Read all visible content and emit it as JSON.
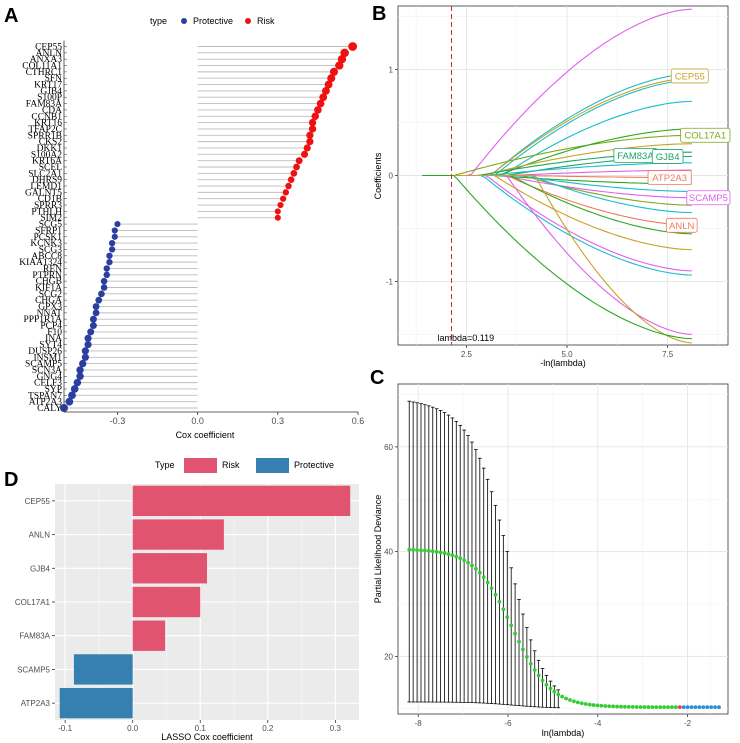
{
  "panels": {
    "a": "A",
    "b": "B",
    "c": "C",
    "d": "D"
  },
  "chart_data": [
    {
      "id": "A",
      "type": "lollipop",
      "xlabel": "Cox coefficient",
      "xticks": [
        "-0.3",
        "0.0",
        "0.3",
        "0.6"
      ],
      "xlim": [
        -0.5,
        0.6
      ],
      "legend": {
        "title": "type",
        "items": [
          {
            "name": "Protective",
            "color": "#2b3fa0"
          },
          {
            "name": "Risk",
            "color": "#ee1111"
          }
        ]
      },
      "genes": [
        "CEP55",
        "ANLN",
        "ANXA3",
        "COL11A1",
        "CTHRC1",
        "SFN",
        "KRT17",
        "GJB4",
        "S100P",
        "FAM83A",
        "CDA",
        "CCNB1",
        "KRT16",
        "TFAP2C",
        "SPRR1B",
        "CKS2",
        "DKK1",
        "S100A2",
        "KRT6A",
        "SCEL",
        "SLC2A1",
        "DHRS9",
        "LEMD1",
        "GALNT5",
        "CD1B",
        "SPRR3",
        "PTHLH",
        "SIM2",
        "SCG5",
        "SFRP1",
        "PCSK1",
        "KCNK3",
        "SCG3",
        "ABCC8",
        "KIAA1324",
        "REN",
        "PTPRN",
        "CHGB",
        "KIF1A",
        "SCG2",
        "CHGA",
        "GPX3",
        "NNAT",
        "PPP1R1A",
        "PCP4",
        "F10",
        "INA",
        "SYT4",
        "DUSP26",
        "INSM1",
        "SCAMP5",
        "SCN3A",
        "GNG4",
        "CELF3",
        "SYP",
        "TSPAN7",
        "ATP2A3",
        "CALY"
      ],
      "values": [
        0.58,
        0.55,
        0.54,
        0.53,
        0.51,
        0.5,
        0.49,
        0.48,
        0.47,
        0.46,
        0.45,
        0.44,
        0.43,
        0.43,
        0.42,
        0.42,
        0.41,
        0.4,
        0.38,
        0.37,
        0.36,
        0.35,
        0.34,
        0.33,
        0.32,
        0.31,
        0.3,
        0.3,
        -0.3,
        -0.31,
        -0.31,
        -0.32,
        -0.32,
        -0.33,
        -0.33,
        -0.34,
        -0.34,
        -0.35,
        -0.35,
        -0.36,
        -0.37,
        -0.38,
        -0.38,
        -0.39,
        -0.39,
        -0.4,
        -0.41,
        -0.41,
        -0.42,
        -0.42,
        -0.43,
        -0.44,
        -0.44,
        -0.45,
        -0.46,
        -0.47,
        -0.48,
        -0.5
      ]
    },
    {
      "id": "B",
      "type": "line",
      "xlabel": "-ln(lambda)",
      "ylabel": "Coefficients",
      "xlim": [
        0.8,
        9.0
      ],
      "ylim": [
        -1.6,
        1.6
      ],
      "xticks": [
        {
          "v": 2.5,
          "t": "2.5"
        },
        {
          "v": 5.0,
          "t": "5.0"
        },
        {
          "v": 7.5,
          "t": "7.5"
        }
      ],
      "yticks": [
        {
          "v": -1,
          "t": "-1"
        },
        {
          "v": 0,
          "t": "0"
        },
        {
          "v": 1,
          "t": "1"
        }
      ],
      "vline": 2.13,
      "annotation": "lambda=0.119",
      "labels": [
        {
          "text": "CEP55",
          "x": 8.05,
          "y": 0.94,
          "color": "#c9a227"
        },
        {
          "text": "COL17A1",
          "x": 8.45,
          "y": 0.38,
          "color": "#7fa81a"
        },
        {
          "text": "FAM83A",
          "x": 6.7,
          "y": 0.19,
          "color": "#1aa66a"
        },
        {
          "text": "GJB4",
          "x": 7.5,
          "y": 0.18,
          "color": "#1aa66a"
        },
        {
          "text": "ATP2A3",
          "x": 7.55,
          "y": -0.02,
          "color": "#f07a60"
        },
        {
          "text": "SCAMP5",
          "x": 8.55,
          "y": -0.21,
          "color": "#e15ef0"
        },
        {
          "text": "ANLN",
          "x": 7.85,
          "y": -0.47,
          "color": "#f07a60"
        }
      ],
      "series": [
        {
          "c": "#e15ef0",
          "start": 2.6,
          "end": 1.57
        },
        {
          "c": "#19bdc9",
          "start": 3.1,
          "end": 0.96
        },
        {
          "c": "#c9a227",
          "start": 3.1,
          "end": 0.92
        },
        {
          "c": "#19bdc9",
          "start": 3.2,
          "end": 0.9
        },
        {
          "c": "#19bdc9",
          "start": 3.4,
          "end": 0.7
        },
        {
          "c": "#7fa81a",
          "start": 2.2,
          "end": 0.38
        },
        {
          "c": "#2aa820",
          "start": 3.3,
          "end": 0.44
        },
        {
          "c": "#c9a227",
          "start": 2.9,
          "end": 0.3
        },
        {
          "c": "#1aa66a",
          "start": 2.8,
          "end": 0.22
        },
        {
          "c": "#1aa66a",
          "start": 3.5,
          "end": 0.18
        },
        {
          "c": "#19bdc9",
          "start": 3.0,
          "end": 0.12
        },
        {
          "c": "#e15ef0",
          "start": 3.6,
          "end": 0.05
        },
        {
          "c": "#f07a60",
          "start": 4.0,
          "end": -0.02
        },
        {
          "c": "#2aa820",
          "start": 3.2,
          "end": -0.08
        },
        {
          "c": "#19bdc9",
          "start": 3.8,
          "end": -0.15
        },
        {
          "c": "#e15ef0",
          "start": 3.4,
          "end": -0.21
        },
        {
          "c": "#7fa81a",
          "start": 3.9,
          "end": -0.28
        },
        {
          "c": "#19bdc9",
          "start": 4.1,
          "end": -0.35
        },
        {
          "c": "#f07a60",
          "start": 3.5,
          "end": -0.47
        },
        {
          "c": "#2aa820",
          "start": 3.6,
          "end": -0.55
        },
        {
          "c": "#c9a227",
          "start": 3.2,
          "end": -0.7
        },
        {
          "c": "#e15ef0",
          "start": 3.0,
          "end": -0.9
        },
        {
          "c": "#19bdc9",
          "start": 2.9,
          "end": -0.94
        },
        {
          "c": "#e15ef0",
          "start": 3.5,
          "end": -1.5
        },
        {
          "c": "#c9a227",
          "start": 4.2,
          "end": -1.58
        },
        {
          "c": "#2aa820",
          "start": 2.2,
          "end": -1.54
        }
      ]
    },
    {
      "id": "C",
      "type": "errorbar",
      "xlabel": "ln(lambda)",
      "ylabel": "Partial Likelihood Deviance",
      "xlim": [
        -8.45,
        -1.1
      ],
      "ylim": [
        9,
        72
      ],
      "xticks": [
        {
          "v": -8,
          "t": "-8"
        },
        {
          "v": -6,
          "t": "-6"
        },
        {
          "v": -4,
          "t": "-4"
        },
        {
          "v": -2,
          "t": "-2"
        }
      ],
      "yticks": [
        {
          "v": 20,
          "t": "20"
        },
        {
          "v": 40,
          "t": "40"
        },
        {
          "v": 60,
          "t": "60"
        }
      ],
      "x_range": [
        -8.2,
        -1.3
      ],
      "n_points": 80,
      "mean_start": 40.5,
      "mean_end": 10.3,
      "upper_start": 69,
      "lower_start": 11.3,
      "colors": {
        "green": "#33cc33",
        "blue": "#2b8fd6",
        "red": "#e8424f",
        "error": "#000000"
      }
    },
    {
      "id": "D",
      "type": "bar",
      "orientation": "horizontal",
      "xlabel": "LASSO Cox coefficient",
      "xlim": [
        -0.115,
        0.335
      ],
      "xticks": [
        {
          "v": -0.1,
          "t": "-0.1"
        },
        {
          "v": 0.0,
          "t": "0.0"
        },
        {
          "v": 0.1,
          "t": "0.1"
        },
        {
          "v": 0.2,
          "t": "0.2"
        },
        {
          "v": 0.3,
          "t": "0.3"
        }
      ],
      "legend": {
        "title": "Type",
        "items": [
          {
            "name": "Risk",
            "color": "#e0546f"
          },
          {
            "name": "Protective",
            "color": "#3580b0"
          }
        ]
      },
      "categories": [
        "CEP55",
        "ANLN",
        "GJB4",
        "COL17A1",
        "FAM83A",
        "SCAMP5",
        "ATP2A3"
      ],
      "values": [
        0.322,
        0.135,
        0.11,
        0.1,
        0.048,
        -0.087,
        -0.108
      ]
    }
  ]
}
